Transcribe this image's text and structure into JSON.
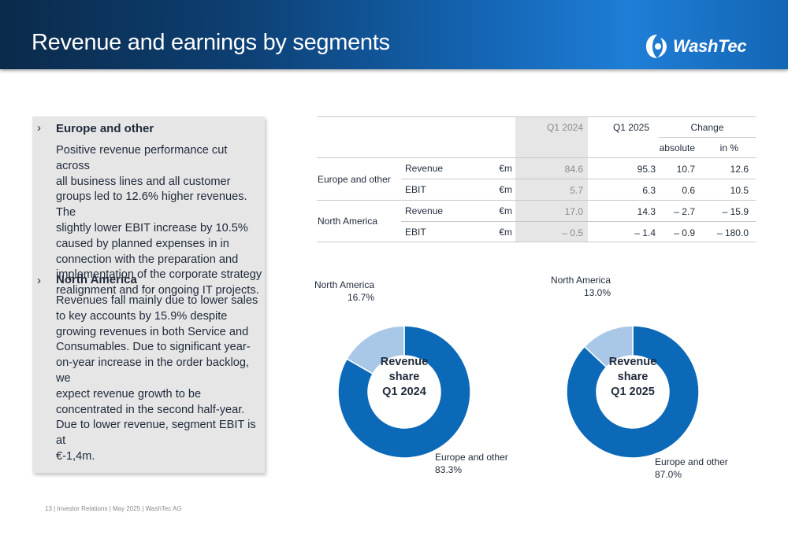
{
  "header": {
    "title": "Revenue and earnings by segments",
    "logo_text": "WashTec"
  },
  "panel": {
    "sections": [
      {
        "marker": "›",
        "heading": "Europe and other",
        "body_lines": [
          "Positive revenue performance cut across",
          "all business lines and all customer",
          "groups led to 12.6% higher revenues. The",
          "slightly lower EBIT increase by 10.5%",
          "caused by planned expenses in in",
          "connection with the preparation and",
          "implementation of the corporate strategy",
          "realignment and for ongoing IT projects."
        ]
      },
      {
        "marker": "›",
        "heading": "North America",
        "body_lines": [
          "Revenues fall mainly due to lower sales",
          "to key accounts by 15.9% despite",
          "growing revenues in both Service and",
          "Consumables. Due to significant year-",
          "on-year increase in the order backlog, we",
          "expect revenue growth to be",
          "concentrated in the second half-year.",
          "Due to lower revenue, segment EBIT is at",
          "€-1,4m."
        ]
      }
    ]
  },
  "table": {
    "col_q1_2024": "Q1 2024",
    "col_q1_2025": "Q1 2025",
    "col_change": "Change",
    "col_absolute": "absolute",
    "col_in_pct": "in %",
    "segments": [
      {
        "name": "Europe and other",
        "rows": [
          {
            "metric": "Revenue",
            "unit": "€m",
            "q1_2024": "84.6",
            "q1_2025": "95.3",
            "absolute": "10.7",
            "in_pct": "12.6"
          },
          {
            "metric": "EBIT",
            "unit": "€m",
            "q1_2024": "5.7",
            "q1_2025": "6.3",
            "absolute": "0.6",
            "in_pct": "10.5"
          }
        ]
      },
      {
        "name": "North America",
        "rows": [
          {
            "metric": "Revenue",
            "unit": "€m",
            "q1_2024": "17.0",
            "q1_2025": "14.3",
            "absolute": "– 2.7",
            "in_pct": "– 15.9"
          },
          {
            "metric": "EBIT",
            "unit": "€m",
            "q1_2024": "– 0.5",
            "q1_2025": "– 1.4",
            "absolute": "– 0.9",
            "in_pct": "– 180.0"
          }
        ]
      }
    ]
  },
  "chart_data": [
    {
      "type": "pie",
      "title": "Revenue share Q1 2024",
      "center_lines": [
        "Revenue",
        "share",
        "Q1 2024"
      ],
      "categories": [
        "Europe and other",
        "North America"
      ],
      "values": [
        83.3,
        16.7
      ],
      "value_labels": [
        "83.3%",
        "16.7%"
      ],
      "colors": [
        "#0b69b8",
        "#a9c8e8"
      ]
    },
    {
      "type": "pie",
      "title": "Revenue share Q1 2025",
      "center_lines": [
        "Revenue",
        "share",
        "Q1 2025"
      ],
      "categories": [
        "Europe and other",
        "North America"
      ],
      "values": [
        87.0,
        13.0
      ],
      "value_labels": [
        "87.0%",
        "13.0%"
      ],
      "colors": [
        "#0b69b8",
        "#a9c8e8"
      ]
    }
  ],
  "footer": {
    "text": "13 |  Investor Relations | May 2025 | WashTec AG"
  }
}
